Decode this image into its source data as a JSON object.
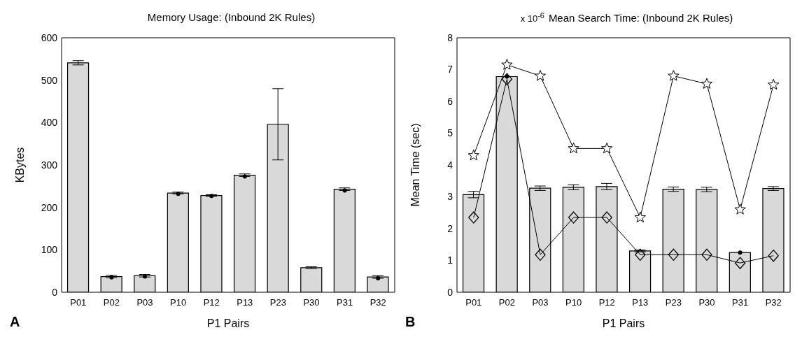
{
  "chart_data": [
    {
      "type": "bar",
      "title": "Memory Usage: (Inbound 2K Rules)",
      "xlabel": "P1 Pairs",
      "ylabel": "KBytes",
      "annotations": [
        "A"
      ],
      "categories": [
        "P01",
        "P02",
        "P03",
        "P10",
        "P12",
        "P13",
        "P23",
        "P30",
        "P31",
        "P32"
      ],
      "ylim": [
        0,
        600
      ],
      "yticks": [
        0,
        100,
        200,
        300,
        400,
        500,
        600
      ],
      "grid": false,
      "legend": false,
      "series": [
        {
          "color": "#d9d9d9",
          "values": [
            541,
            37,
            39,
            234,
            228,
            276,
            396,
            58,
            243,
            36
          ],
          "errors": [
            5,
            3,
            3,
            2,
            2,
            3,
            84,
            2,
            3,
            3
          ]
        },
        {
          "type": "scatter",
          "color": "#000000",
          "marker": "circle",
          "values": [
            null,
            35,
            37,
            232,
            227,
            273,
            null,
            null,
            240,
            33
          ]
        }
      ]
    },
    {
      "type": "bar",
      "title": "Mean Search Time: (Inbound 2K Rules)",
      "xlabel": "P1 Pairs",
      "ylabel": "Mean Time (sec)",
      "annotations": [
        "B",
        "x 10$^{-6}$"
      ],
      "categories": [
        "P01",
        "P02",
        "P03",
        "P10",
        "P12",
        "P13",
        "P23",
        "P30",
        "P31",
        "P32"
      ],
      "ylim": [
        0,
        8
      ],
      "yticks": [
        0,
        1,
        2,
        3,
        4,
        5,
        6,
        7,
        8
      ],
      "grid": false,
      "legend": false,
      "series": [
        {
          "color": "#d9d9d9",
          "values": [
            3.07,
            6.78,
            3.27,
            3.3,
            3.32,
            1.3,
            3.24,
            3.23,
            1.25,
            3.26
          ],
          "errors": [
            0.1,
            null,
            0.07,
            0.08,
            0.1,
            0.03,
            0.07,
            0.07,
            null,
            0.06
          ]
        },
        {
          "type": "line",
          "color": "#000000",
          "marker": "star",
          "line_style": "solid",
          "values": [
            4.3,
            7.15,
            6.8,
            4.52,
            4.52,
            2.35,
            6.8,
            6.55,
            2.6,
            6.52
          ]
        },
        {
          "type": "line",
          "color": "#000000",
          "marker": "diamond",
          "line_style": "solid",
          "values": [
            2.35,
            6.7,
            1.18,
            2.35,
            2.35,
            1.18,
            1.18,
            1.18,
            0.92,
            1.15
          ]
        },
        {
          "type": "scatter",
          "color": "#000000",
          "marker": "circle",
          "values": [
            null,
            6.78,
            null,
            null,
            null,
            null,
            null,
            null,
            1.25,
            null
          ]
        }
      ]
    }
  ]
}
